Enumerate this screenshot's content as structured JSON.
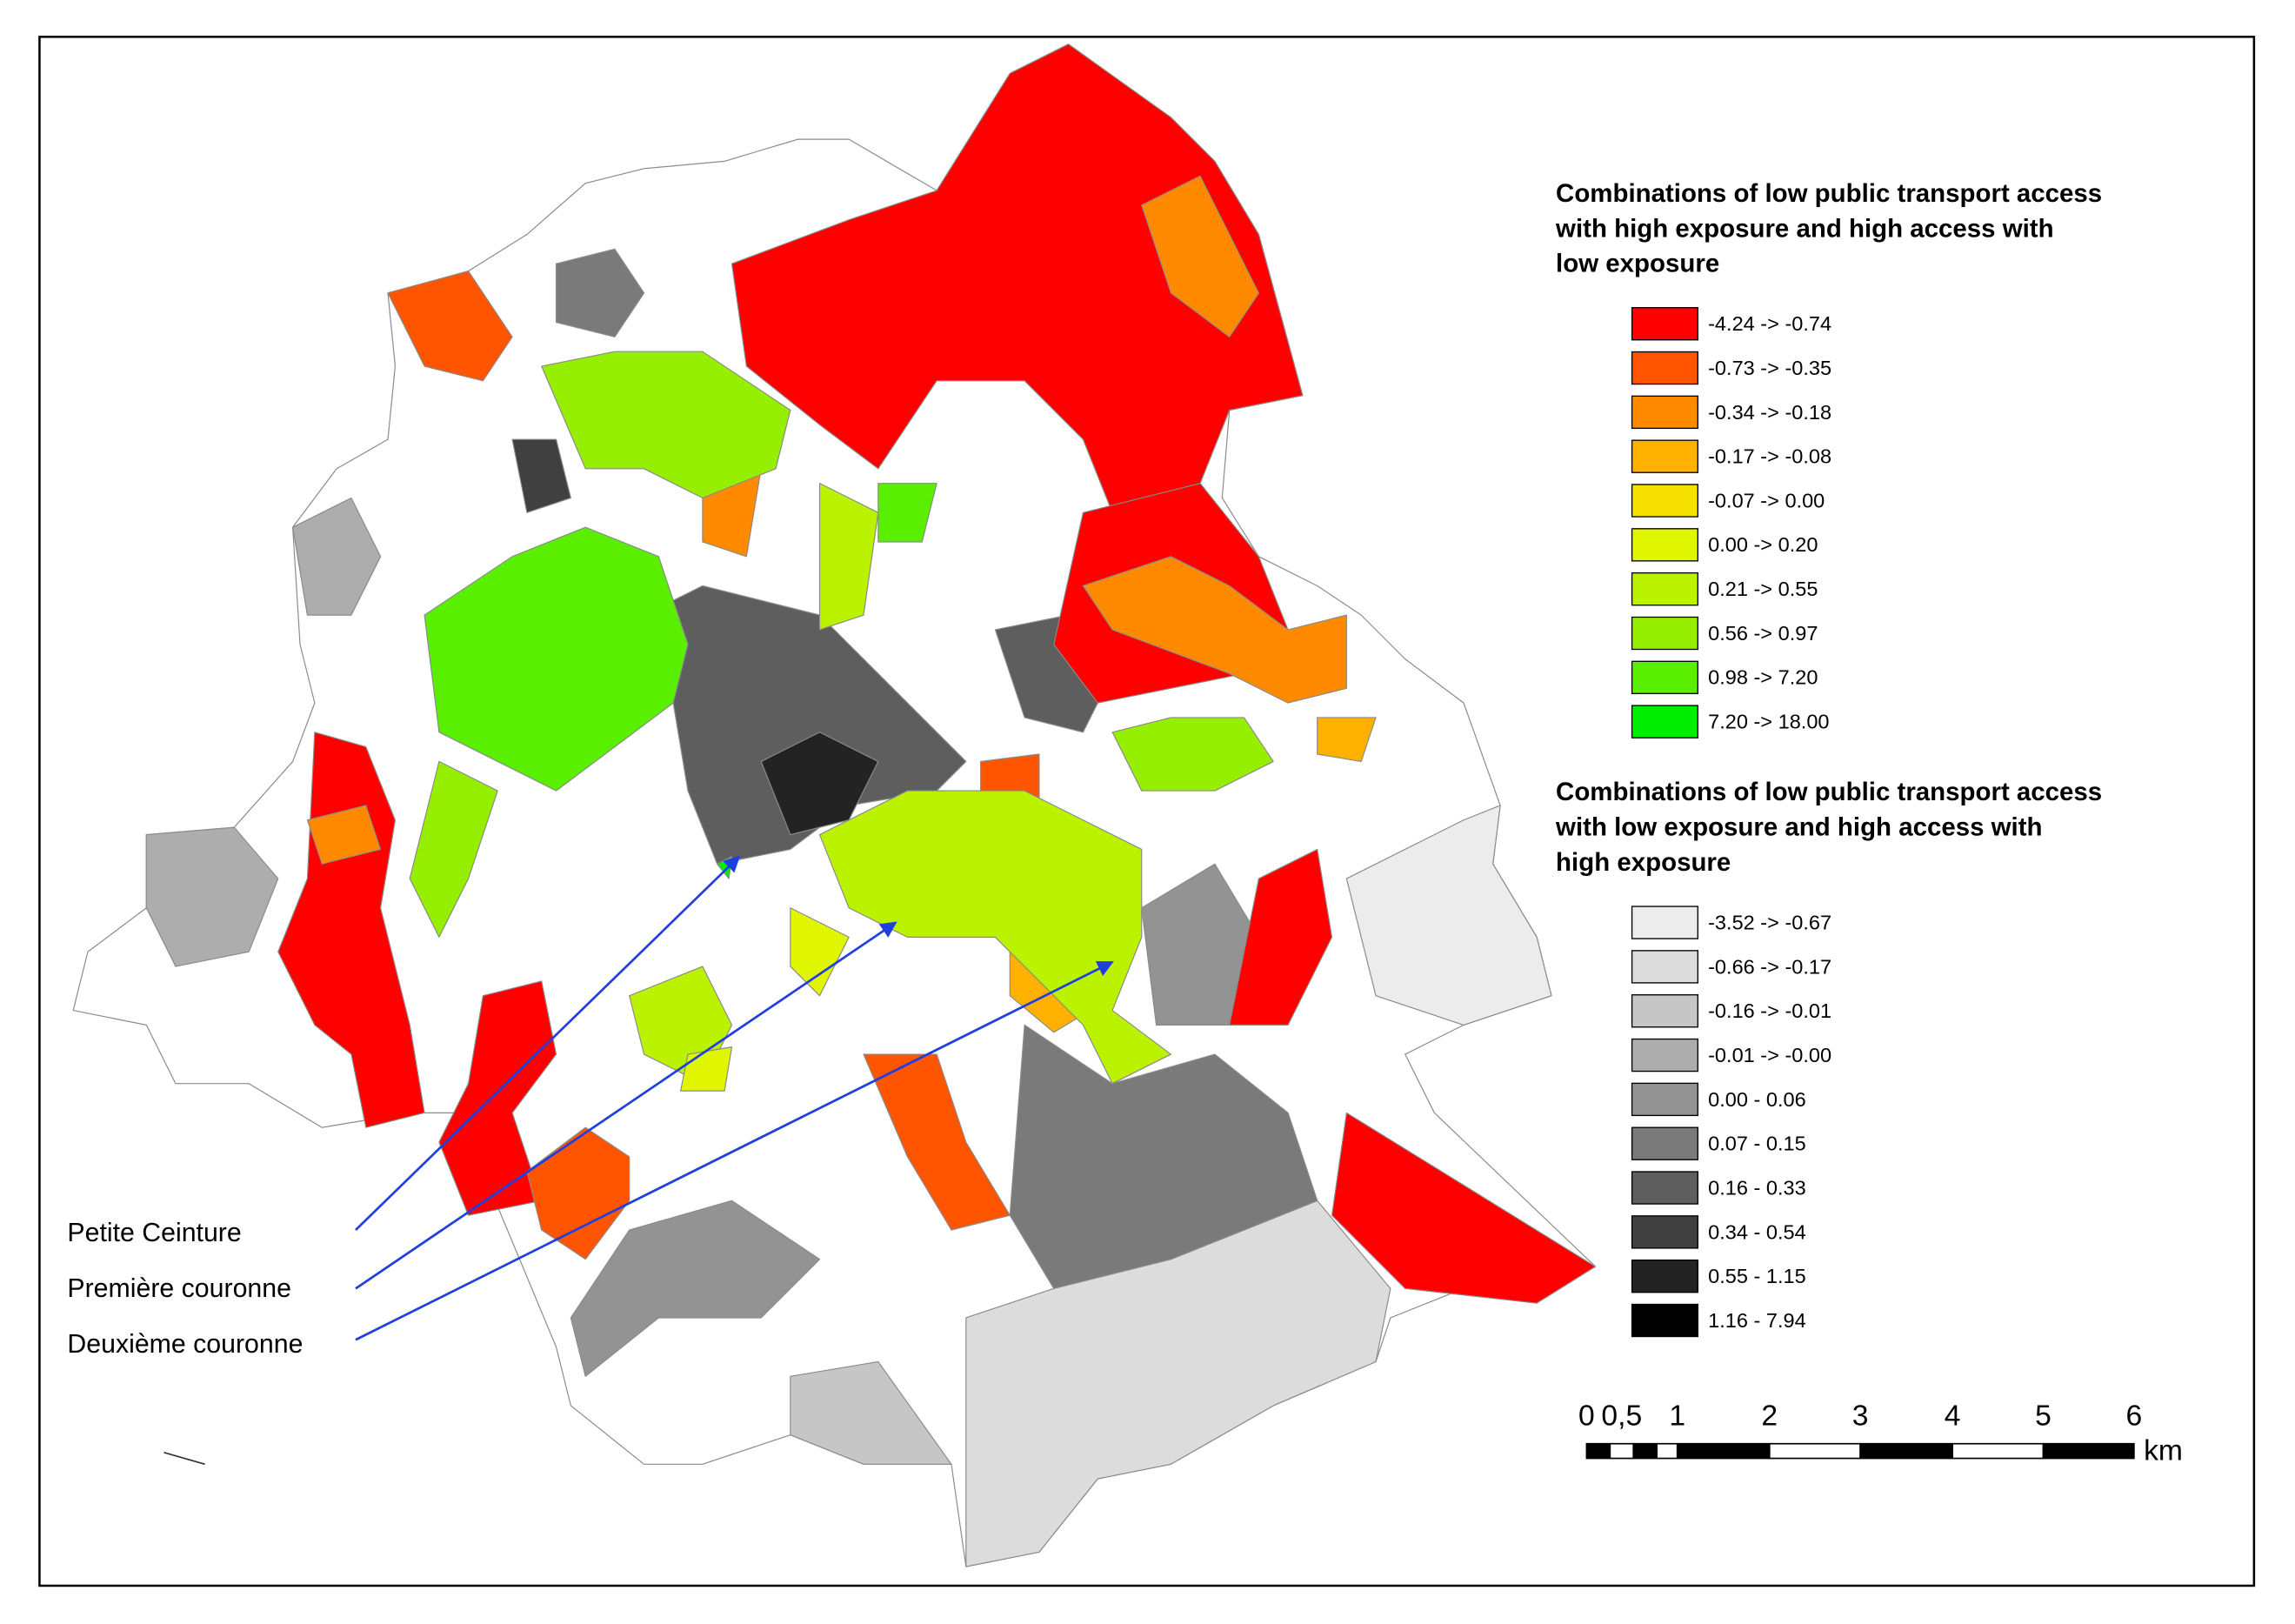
{
  "legends": [
    {
      "title": [
        "Combinations of low public transport access",
        "with high exposure and high access with",
        "low exposure"
      ],
      "items": [
        {
          "label": "-4.24 -> -0.74",
          "color": "#ff0000"
        },
        {
          "label": "-0.73 -> -0.35",
          "color": "#ff5500"
        },
        {
          "label": "-0.34 -> -0.18",
          "color": "#ff8a00"
        },
        {
          "label": "-0.17 -> -0.08",
          "color": "#ffb000"
        },
        {
          "label": "-0.07 -> 0.00",
          "color": "#f5e000"
        },
        {
          "label": "0.00 -> 0.20",
          "color": "#e0f500"
        },
        {
          "label": "0.21 -> 0.55",
          "color": "#bbf200"
        },
        {
          "label": "0.56 -> 0.97",
          "color": "#96ee00"
        },
        {
          "label": "0.98 -> 7.20",
          "color": "#5aee00"
        },
        {
          "label": "7.20 -> 18.00",
          "color": "#00ee00"
        }
      ]
    },
    {
      "title": [
        "Combinations of low public transport access",
        "with low exposure and high access with",
        "high exposure"
      ],
      "items": [
        {
          "label": "-3.52 -> -0.67",
          "color": "#ececec"
        },
        {
          "label": "-0.66 -> -0.17",
          "color": "#dcdcdc"
        },
        {
          "label": "-0.16 -> -0.01",
          "color": "#c6c6c6"
        },
        {
          "label": "-0.01 -> -0.00",
          "color": "#adadad"
        },
        {
          "label": "0.00 - 0.06",
          "color": "#939393"
        },
        {
          "label": "0.07 - 0.15",
          "color": "#7a7a7a"
        },
        {
          "label": "0.16 - 0.33",
          "color": "#5e5e5e"
        },
        {
          "label": "0.34 - 0.54",
          "color": "#404040"
        },
        {
          "label": "0.55 - 1.15",
          "color": "#232323"
        },
        {
          "label": "1.16 - 7.94",
          "color": "#000000"
        }
      ]
    }
  ],
  "annotations": [
    "Petite Ceinture",
    "Première couronne",
    "Deuxième couronne"
  ],
  "scale_bar": {
    "labels": [
      "0",
      "0,5",
      "1",
      "2",
      "3",
      "4",
      "5",
      "6"
    ],
    "unit": "km"
  }
}
